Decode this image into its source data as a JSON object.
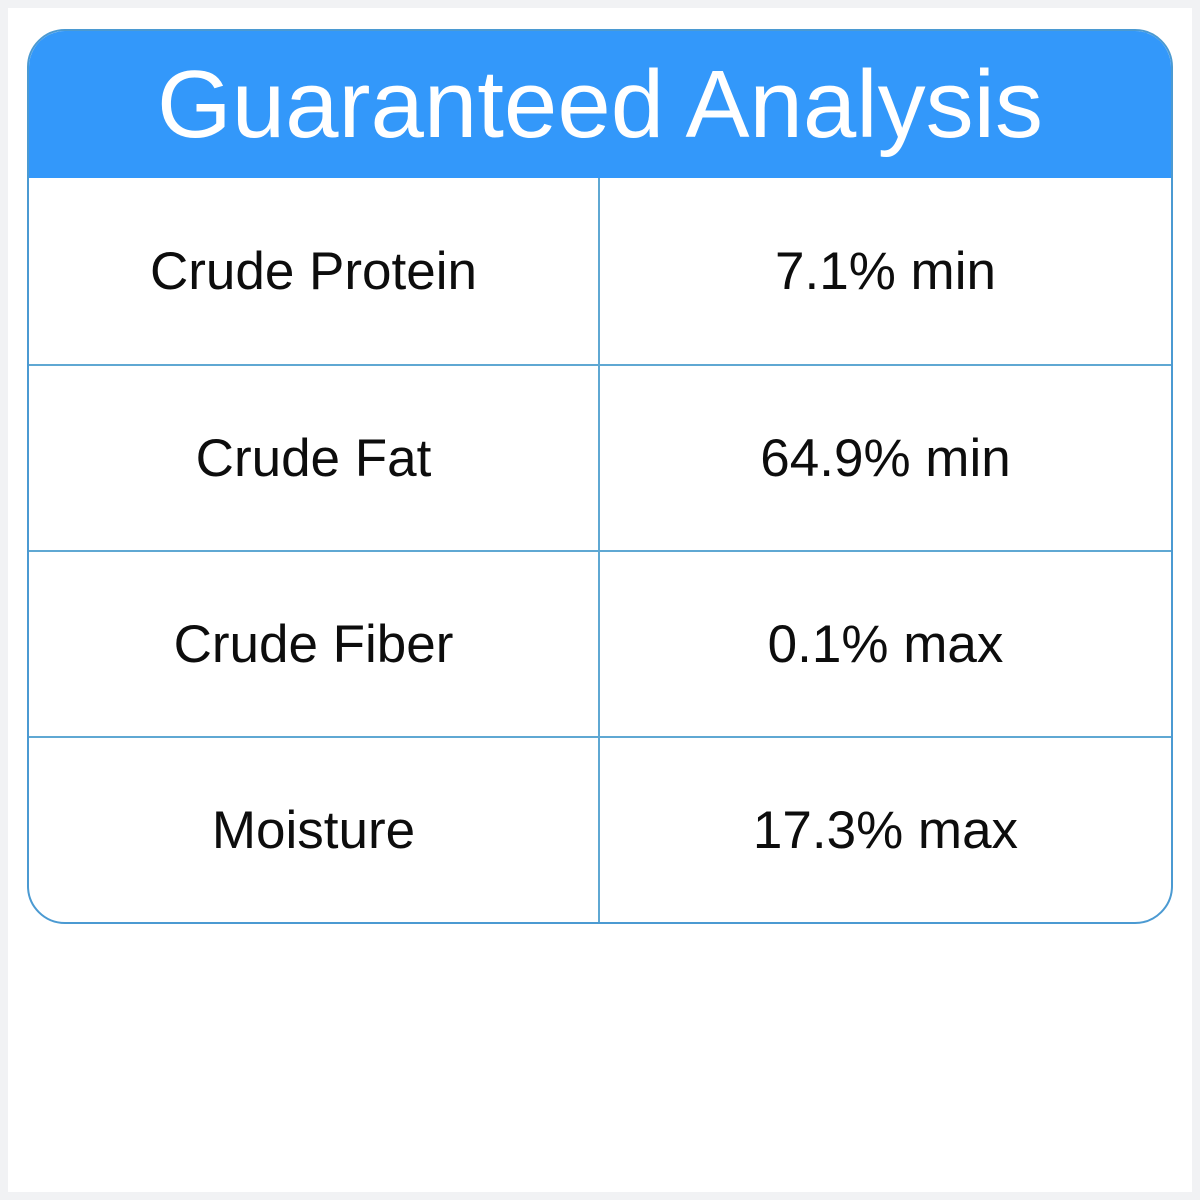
{
  "header": {
    "title": "Guaranteed Analysis"
  },
  "table": {
    "rows": [
      {
        "label": "Crude Protein",
        "value": "7.1% min"
      },
      {
        "label": "Crude Fat",
        "value": "64.9% min"
      },
      {
        "label": "Crude Fiber",
        "value": "0.1% max"
      },
      {
        "label": "Moisture",
        "value": "17.3% max"
      }
    ]
  },
  "colors": {
    "header_bg": "#3398fa",
    "border_blue": "#4b9ad2",
    "divider_blue": "#5fa8d3",
    "text": "#0d0d0d",
    "title_text": "#ffffff",
    "frame": "#f1f2f4",
    "page_bg": "#ffffff"
  }
}
